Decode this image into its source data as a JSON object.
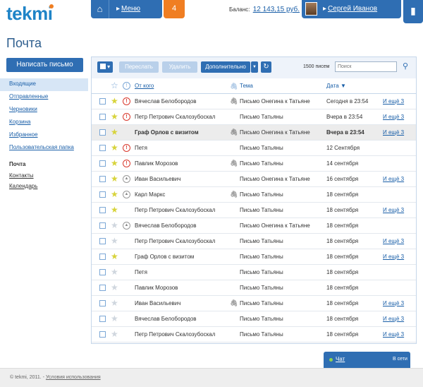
{
  "header": {
    "logo": "tekmi",
    "menu_label": "Меню",
    "notifications": "4",
    "balance_label": "Баланс:",
    "balance_value": "12 143,15 руб.",
    "user_name": "Сергей Иванов"
  },
  "page_title": "Почта",
  "sidebar": {
    "compose": "Написать письмо",
    "folders": [
      "Входящие",
      "Отправленные",
      "Черновики",
      "Корзина",
      "Избранное",
      "Пользовательская папка"
    ],
    "section_title": "Почта",
    "links": [
      "Контакты",
      "Календарь"
    ]
  },
  "toolbar": {
    "forward": "Переслать",
    "delete": "Удалить",
    "more": "Дополнительно",
    "count": "1500 писем",
    "search_placeholder": "Поиск"
  },
  "table": {
    "col_from": "От кого",
    "col_subject": "Тема",
    "col_date": "Дата ▼"
  },
  "rows": [
    {
      "from": "Вячеслав Белобородов",
      "subject": "Письмо Онегина к Татьяне",
      "date": "Сегодня в 23:54",
      "more": "И ещё 3",
      "star": true,
      "prio": "high",
      "clip": true
    },
    {
      "from": "Петр Петрович Скалозубоскал",
      "subject": "Письмо Татьяны",
      "date": "Вчера в 23:54",
      "more": "И ещё 3",
      "star": true,
      "prio": "high",
      "clip": false
    },
    {
      "from": "Граф Орлов с визитом",
      "subject": "Письмо Онегина к Татьяне",
      "date": "Вчера в 23:54",
      "more": "И ещё 3",
      "star": true,
      "prio": "",
      "clip": true
    },
    {
      "from": "Петя",
      "subject": "Письмо Татьяны",
      "date": "12 Сентября",
      "more": "",
      "star": true,
      "prio": "high",
      "clip": false
    },
    {
      "from": "Павлик Морозов",
      "subject": "Письмо Татьяны",
      "date": "14 сентября",
      "more": "",
      "star": true,
      "prio": "high",
      "clip": true
    },
    {
      "from": "Иван Васильевич",
      "subject": "Письмо Онегина к Татьяне",
      "date": "16 сентября",
      "more": "И ещё 3",
      "star": true,
      "prio": "low",
      "clip": false
    },
    {
      "from": "Карл Маркс",
      "subject": "Письмо Татьяны",
      "date": "18 сентября",
      "more": "",
      "star": true,
      "prio": "low",
      "clip": true
    },
    {
      "from": "Петр Петрович Скалозубоскал",
      "subject": "Письмо Татьяны",
      "date": "18 сентября",
      "more": "И ещё 3",
      "star": true,
      "prio": "",
      "clip": false
    },
    {
      "from": "Вячеслав Белобородов",
      "subject": "Письмо Онегина к Татьяне",
      "date": "18 сентября",
      "more": "",
      "star": false,
      "prio": "low",
      "clip": false
    },
    {
      "from": "Петр Петрович Скалозубоскал",
      "subject": "Письмо Татьяны",
      "date": "18 сентября",
      "more": "И ещё 3",
      "star": false,
      "prio": "",
      "clip": false
    },
    {
      "from": "Граф Орлов с визитом",
      "subject": "Письмо Татьяны",
      "date": "18 сентября",
      "more": "И ещё 3",
      "star": true,
      "prio": "",
      "clip": false
    },
    {
      "from": "Петя",
      "subject": "Письмо Татьяны",
      "date": "18 сентября",
      "more": "",
      "star": false,
      "prio": "",
      "clip": false
    },
    {
      "from": "Павлик Морозов",
      "subject": "Письмо Татьяны",
      "date": "18 сентября",
      "more": "",
      "star": false,
      "prio": "",
      "clip": false
    },
    {
      "from": "Иван Васильевич",
      "subject": "Письмо Татьяны",
      "date": "18 сентября",
      "more": "И ещё 3",
      "star": false,
      "prio": "",
      "clip": true
    },
    {
      "from": "Вячеслав Белобородов",
      "subject": "Письмо Татьяны",
      "date": "18 сентября",
      "more": "И ещё 3",
      "star": false,
      "prio": "",
      "clip": false
    },
    {
      "from": "Петр Петрович Скалозубоскал",
      "subject": "Письмо Татьяны",
      "date": "18 сентября",
      "more": "И ещё 3",
      "star": false,
      "prio": "",
      "clip": false
    }
  ],
  "chat": {
    "label": "Чат",
    "status": "В сети"
  },
  "footer": {
    "copyright": "© tekmi, 2011. -",
    "terms": "Условия использования"
  }
}
